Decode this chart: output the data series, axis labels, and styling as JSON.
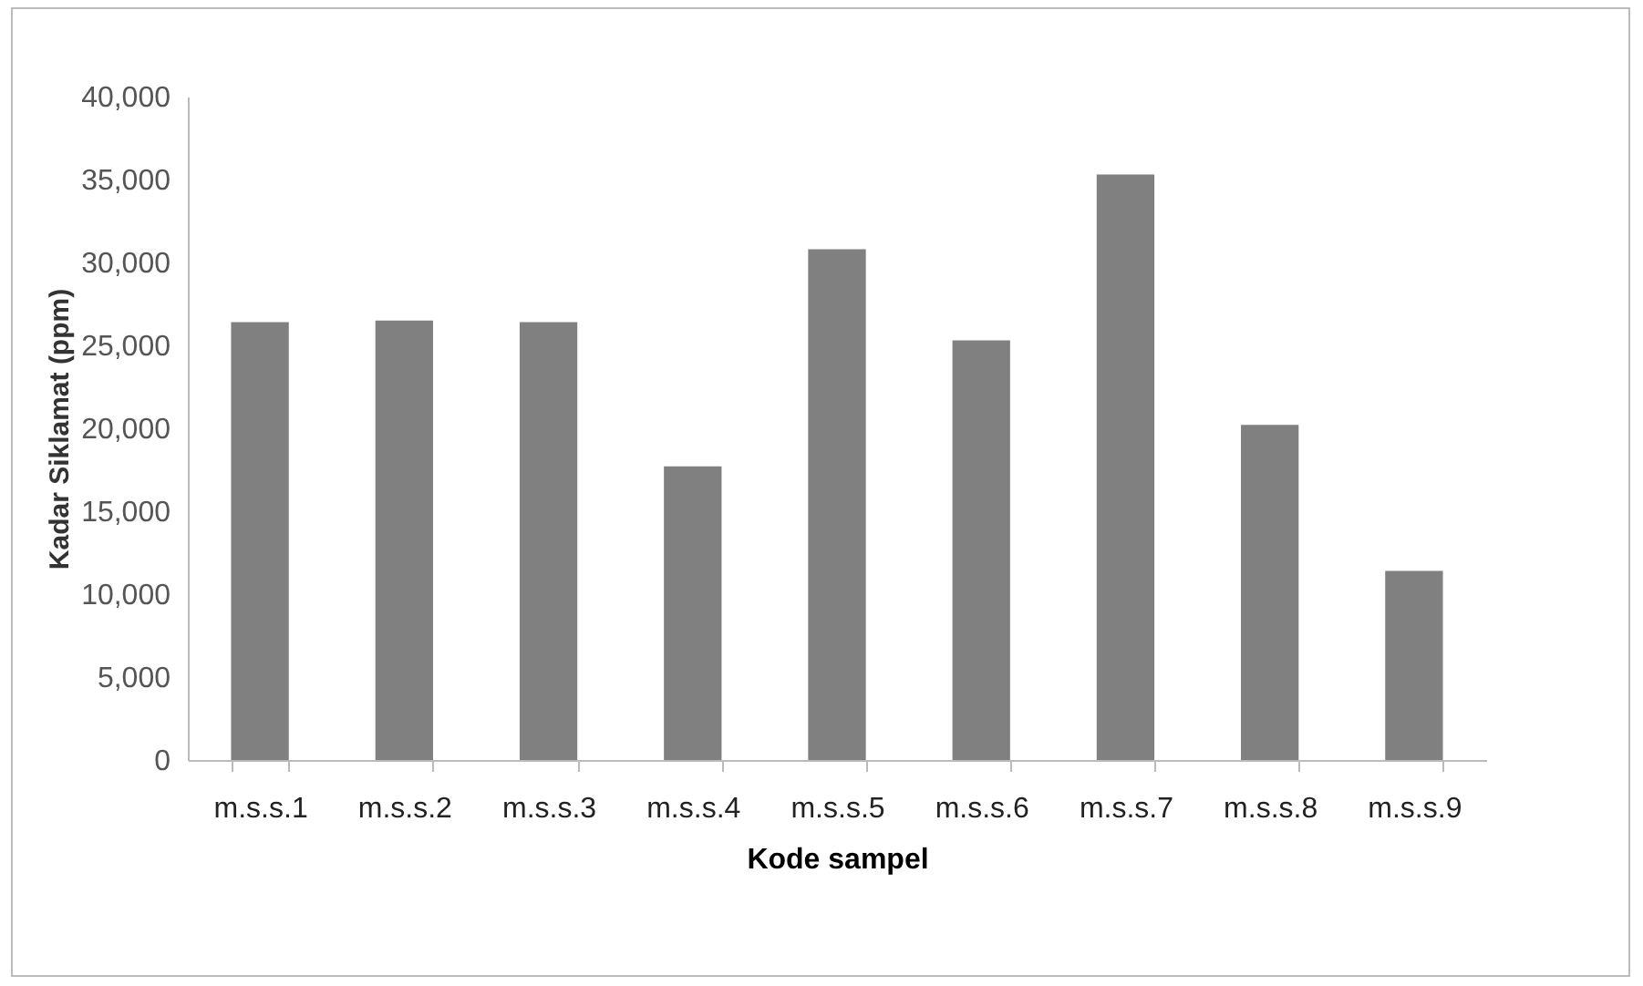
{
  "chart_data": {
    "type": "bar",
    "xlabel": "Kode sampel",
    "ylabel": "Kadar Siklamat (ppm)",
    "categories": [
      "m.s.s.1",
      "m.s.s.2",
      "m.s.s.3",
      "m.s.s.4",
      "m.s.s.5",
      "m.s.s.6",
      "m.s.s.7",
      "m.s.s.8",
      "m.s.s.9"
    ],
    "values": [
      26400,
      26500,
      26400,
      17700,
      30800,
      25300,
      35300,
      20200,
      11400
    ],
    "color": "#808080",
    "ylim": [
      0,
      40000
    ],
    "yticks": [
      0,
      {
        "value": 5000,
        "label": "5,000"
      },
      {
        "value": 10000,
        "label": "10,000"
      },
      {
        "value": 15000,
        "label": "15,000"
      },
      {
        "value": 20000,
        "label": "20,000"
      },
      {
        "value": 25000,
        "label": "25,000"
      },
      {
        "value": 30000,
        "label": "30,000"
      },
      {
        "value": 35000,
        "label": "35,000"
      },
      {
        "value": 40000,
        "label": "40,000"
      }
    ]
  }
}
